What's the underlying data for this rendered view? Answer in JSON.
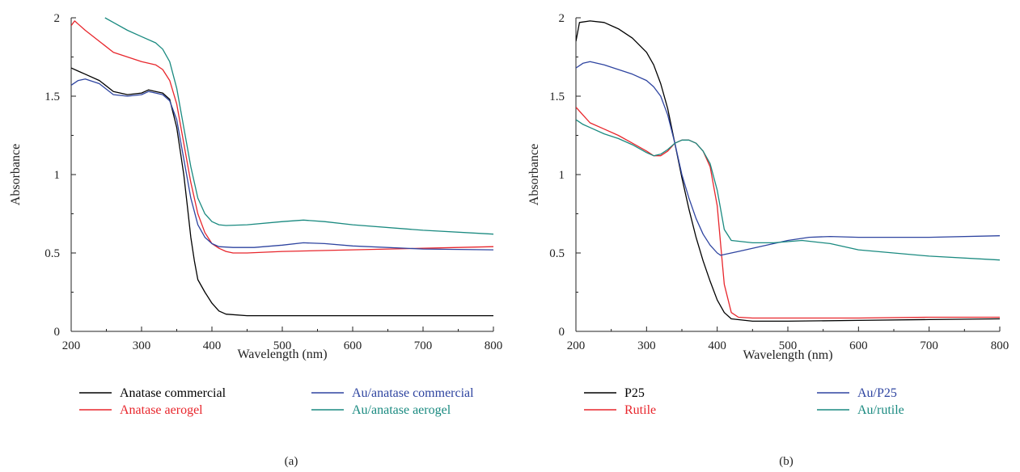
{
  "chart_data": [
    {
      "type": "line",
      "panel_label": "(a)",
      "xlabel": "Wavelength (nm)",
      "ylabel": "Absorbance",
      "xlim": [
        200,
        800
      ],
      "ylim": [
        0,
        2
      ],
      "xticks": [
        200,
        300,
        400,
        500,
        600,
        700,
        800
      ],
      "yticks": [
        0,
        0.5,
        1,
        1.5,
        2
      ],
      "ytick_labels": [
        "0",
        "0.5",
        "1",
        "1.5",
        "2"
      ],
      "grid": false,
      "legend_position": "bottom",
      "series": [
        {
          "name": "Anatase commercial",
          "color": "#000000",
          "x": [
            200,
            210,
            220,
            240,
            260,
            280,
            300,
            310,
            320,
            330,
            340,
            350,
            360,
            365,
            370,
            375,
            380,
            390,
            400,
            410,
            420,
            450,
            500,
            600,
            700,
            800
          ],
          "y": [
            1.68,
            1.66,
            1.64,
            1.6,
            1.53,
            1.51,
            1.52,
            1.54,
            1.53,
            1.52,
            1.48,
            1.3,
            1.0,
            0.8,
            0.6,
            0.45,
            0.33,
            0.25,
            0.18,
            0.13,
            0.11,
            0.1,
            0.1,
            0.1,
            0.1,
            0.1
          ]
        },
        {
          "name": "Anatase aerogel",
          "color": "#e8262c",
          "x": [
            200,
            205,
            210,
            220,
            240,
            260,
            280,
            300,
            320,
            330,
            340,
            350,
            360,
            370,
            380,
            390,
            400,
            410,
            420,
            430,
            450,
            500,
            600,
            700,
            800
          ],
          "y": [
            1.95,
            1.98,
            1.96,
            1.92,
            1.85,
            1.78,
            1.75,
            1.72,
            1.7,
            1.67,
            1.6,
            1.45,
            1.2,
            0.95,
            0.75,
            0.63,
            0.56,
            0.53,
            0.51,
            0.5,
            0.5,
            0.51,
            0.52,
            0.53,
            0.54
          ]
        },
        {
          "name": "Au/anatase commercial",
          "color": "#2e44a0",
          "x": [
            200,
            210,
            220,
            240,
            260,
            280,
            300,
            310,
            320,
            330,
            340,
            350,
            360,
            370,
            380,
            390,
            400,
            410,
            430,
            460,
            500,
            530,
            560,
            600,
            700,
            800
          ],
          "y": [
            1.57,
            1.6,
            1.61,
            1.58,
            1.51,
            1.5,
            1.51,
            1.53,
            1.52,
            1.51,
            1.47,
            1.35,
            1.1,
            0.85,
            0.68,
            0.6,
            0.56,
            0.54,
            0.535,
            0.535,
            0.55,
            0.565,
            0.56,
            0.545,
            0.525,
            0.52
          ]
        },
        {
          "name": "Au/anatase aerogel",
          "color": "#1a8a80",
          "x": [
            248,
            260,
            280,
            300,
            320,
            330,
            340,
            350,
            360,
            370,
            380,
            390,
            400,
            410,
            420,
            450,
            500,
            530,
            560,
            600,
            700,
            800
          ],
          "y": [
            2.0,
            1.97,
            1.92,
            1.88,
            1.84,
            1.8,
            1.72,
            1.55,
            1.3,
            1.05,
            0.85,
            0.75,
            0.7,
            0.68,
            0.675,
            0.68,
            0.7,
            0.71,
            0.7,
            0.68,
            0.645,
            0.62
          ]
        }
      ]
    },
    {
      "type": "line",
      "panel_label": "(b)",
      "xlabel": "Wavelength (nm)",
      "ylabel": "Absorbance",
      "xlim": [
        200,
        800
      ],
      "ylim": [
        0,
        2
      ],
      "xticks": [
        200,
        300,
        400,
        500,
        600,
        700,
        800
      ],
      "yticks": [
        0,
        0.5,
        1,
        1.5,
        2
      ],
      "ytick_labels": [
        "0",
        "0.5",
        "1",
        "1.5",
        "2"
      ],
      "grid": false,
      "legend_position": "bottom",
      "series": [
        {
          "name": "P25",
          "color": "#000000",
          "x": [
            200,
            205,
            220,
            240,
            260,
            280,
            300,
            310,
            320,
            330,
            340,
            350,
            360,
            370,
            380,
            390,
            400,
            410,
            420,
            450,
            500,
            600,
            700,
            800
          ],
          "y": [
            1.85,
            1.97,
            1.98,
            1.97,
            1.93,
            1.87,
            1.78,
            1.7,
            1.58,
            1.42,
            1.2,
            0.98,
            0.78,
            0.6,
            0.45,
            0.32,
            0.2,
            0.12,
            0.08,
            0.065,
            0.065,
            0.07,
            0.075,
            0.08
          ]
        },
        {
          "name": "Rutile",
          "color": "#e8262c",
          "x": [
            200,
            210,
            220,
            240,
            260,
            280,
            300,
            310,
            320,
            330,
            340,
            350,
            360,
            370,
            380,
            390,
            400,
            405,
            410,
            420,
            430,
            450,
            500,
            600,
            700,
            800
          ],
          "y": [
            1.43,
            1.38,
            1.33,
            1.29,
            1.25,
            1.2,
            1.15,
            1.12,
            1.12,
            1.15,
            1.2,
            1.22,
            1.22,
            1.2,
            1.15,
            1.05,
            0.8,
            0.55,
            0.3,
            0.12,
            0.09,
            0.085,
            0.085,
            0.085,
            0.09,
            0.09
          ]
        },
        {
          "name": "Au/P25",
          "color": "#2e44a0",
          "x": [
            200,
            210,
            220,
            240,
            260,
            280,
            300,
            310,
            320,
            330,
            340,
            350,
            360,
            370,
            380,
            390,
            400,
            405,
            410,
            430,
            460,
            500,
            530,
            560,
            600,
            700,
            800
          ],
          "y": [
            1.68,
            1.71,
            1.72,
            1.7,
            1.67,
            1.64,
            1.6,
            1.56,
            1.5,
            1.38,
            1.2,
            1.0,
            0.85,
            0.72,
            0.62,
            0.55,
            0.5,
            0.485,
            0.49,
            0.51,
            0.54,
            0.58,
            0.6,
            0.605,
            0.6,
            0.6,
            0.61
          ]
        },
        {
          "name": "Au/rutile",
          "color": "#1a8a80",
          "x": [
            200,
            210,
            220,
            240,
            260,
            280,
            300,
            310,
            320,
            330,
            340,
            350,
            360,
            370,
            380,
            390,
            400,
            410,
            420,
            450,
            480,
            520,
            560,
            600,
            700,
            800
          ],
          "y": [
            1.35,
            1.32,
            1.3,
            1.26,
            1.23,
            1.19,
            1.14,
            1.12,
            1.13,
            1.16,
            1.2,
            1.22,
            1.22,
            1.2,
            1.15,
            1.07,
            0.9,
            0.65,
            0.58,
            0.565,
            0.565,
            0.58,
            0.56,
            0.52,
            0.48,
            0.455
          ]
        }
      ]
    }
  ]
}
